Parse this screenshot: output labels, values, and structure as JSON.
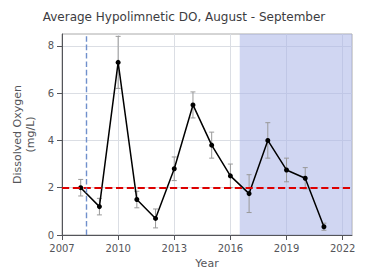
{
  "chart_data": {
    "type": "line",
    "title": "Average Hypolimnetic DO, August - September",
    "xlabel": "Year",
    "ylabel": "Dissolved Oxygen\n(mg/L)",
    "x": [
      2008,
      2009,
      2010,
      2011,
      2012,
      2013,
      2014,
      2015,
      2016,
      2017,
      2018,
      2019,
      2020,
      2021
    ],
    "values": [
      2.0,
      1.2,
      7.3,
      1.5,
      0.7,
      2.8,
      5.5,
      3.8,
      2.5,
      1.75,
      4.0,
      2.75,
      2.4,
      0.35
    ],
    "errors": [
      0.35,
      0.35,
      1.1,
      0.35,
      0.4,
      0.5,
      0.55,
      0.55,
      0.5,
      0.8,
      0.75,
      0.5,
      0.45,
      0.15
    ],
    "color": "#000000",
    "marker": "circle",
    "error_color": "#999999",
    "xlim": [
      2007,
      2022.5
    ],
    "xticks": [
      2007,
      2010,
      2013,
      2016,
      2019,
      2022
    ],
    "ylim": [
      0,
      8.5
    ],
    "yticks": [
      0,
      2,
      4,
      6,
      8
    ],
    "grid": true,
    "hline": {
      "y": 2.0,
      "color": "#dd0000",
      "line_style": "dashed"
    },
    "vline": {
      "x": 2008.3,
      "color": "#7090cc",
      "line_style": "dashed"
    },
    "shade": {
      "x": [
        2016.5,
        2022.5
      ],
      "color": "#aab4e8"
    }
  }
}
